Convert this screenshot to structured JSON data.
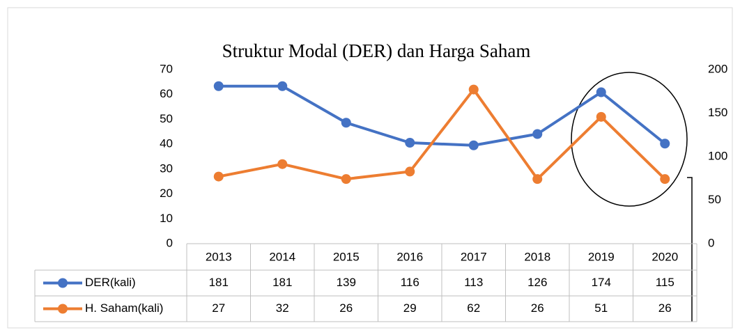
{
  "chart_data": {
    "type": "line",
    "title": "Struktur Modal (DER) dan Harga Saham",
    "categories": [
      "2013",
      "2014",
      "2015",
      "2016",
      "2017",
      "2018",
      "2019",
      "2020"
    ],
    "series": [
      {
        "name": "DER(kali)",
        "color": "#4472c4",
        "axis": "y2",
        "values": [
          181,
          181,
          139,
          116,
          113,
          126,
          174,
          115
        ]
      },
      {
        "name": "H. Saham(kali)",
        "color": "#ed7d31",
        "values": [
          27,
          32,
          26,
          29,
          62,
          26,
          51,
          26
        ]
      }
    ],
    "ylim": [
      0,
      70
    ],
    "yticks": [
      0,
      10,
      20,
      30,
      40,
      50,
      60,
      70
    ],
    "y2lim": [
      0,
      200
    ],
    "y2ticks": [
      0,
      50,
      100,
      150,
      200
    ],
    "grid": false
  }
}
